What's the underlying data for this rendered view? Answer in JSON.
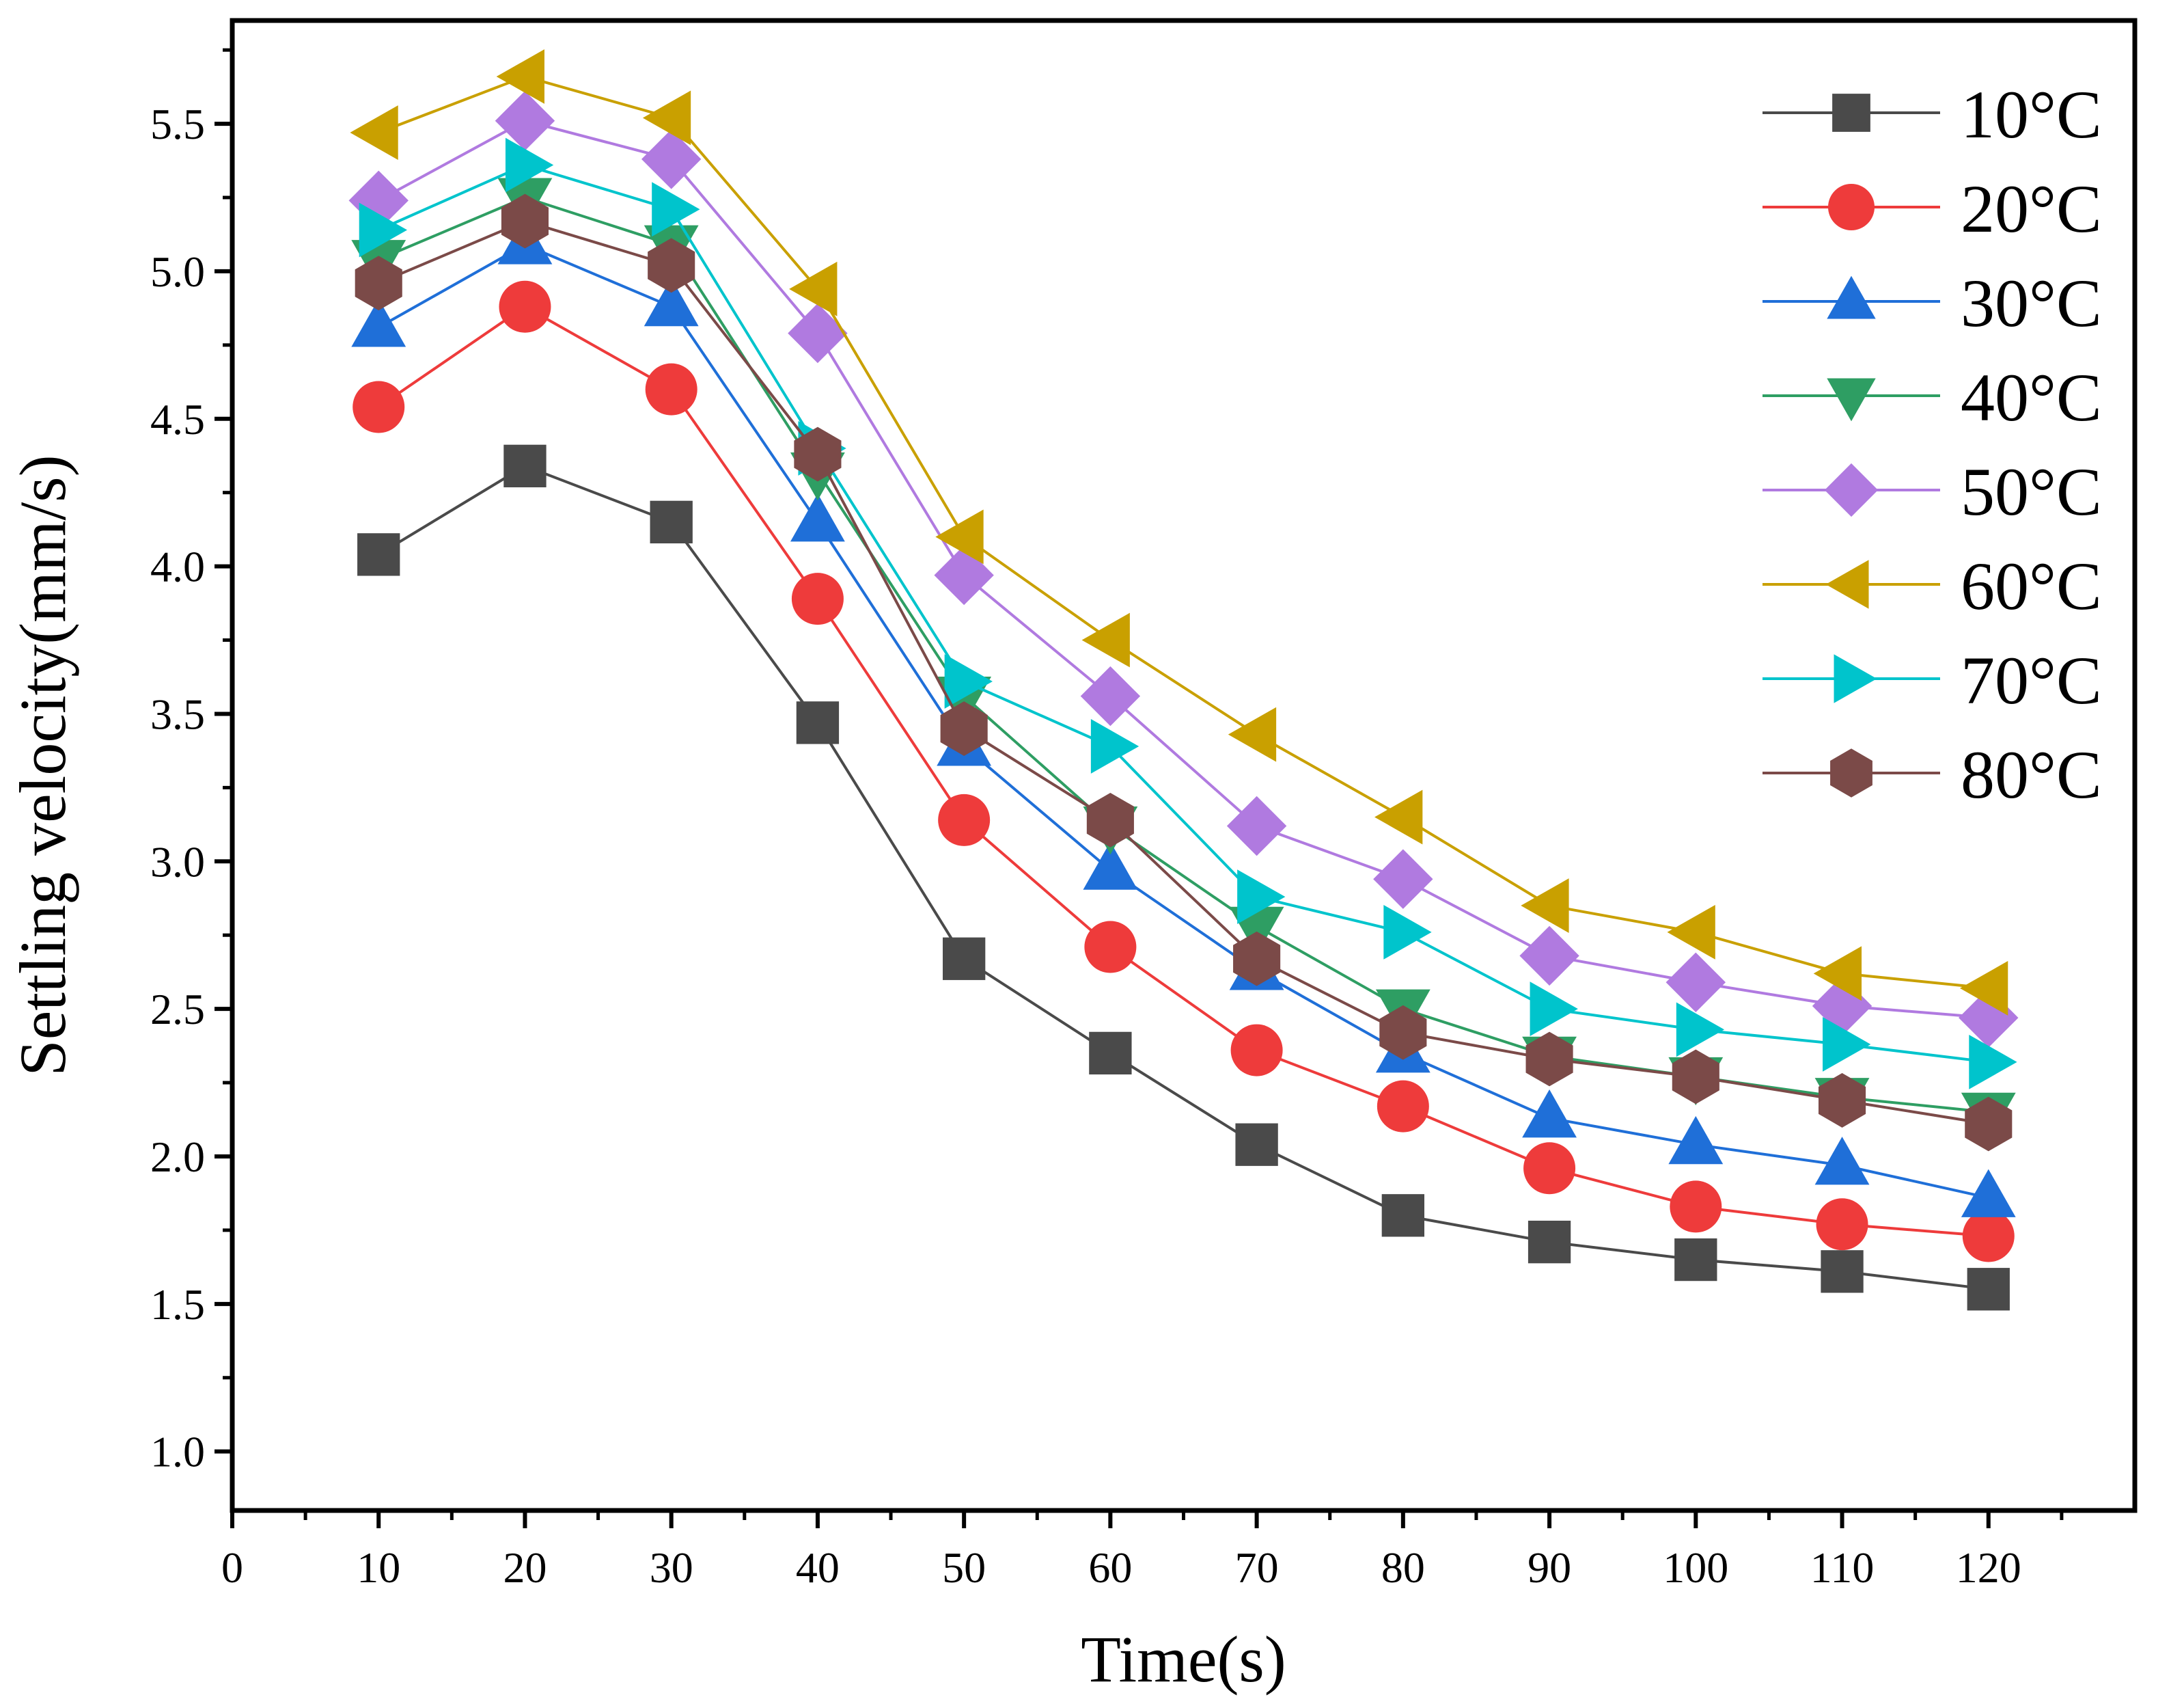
{
  "chart_data": {
    "type": "line",
    "title": "",
    "xlabel": "Time(s)",
    "ylabel": "Settling velocity(mm/s)",
    "xlim": [
      0,
      130
    ],
    "ylim": [
      0.8,
      5.85
    ],
    "x_ticks": [
      0,
      10,
      20,
      30,
      40,
      50,
      60,
      70,
      80,
      90,
      100,
      110,
      120
    ],
    "y_ticks": [
      1.0,
      1.5,
      2.0,
      2.5,
      3.0,
      3.5,
      4.0,
      4.5,
      5.0,
      5.5
    ],
    "grid": false,
    "legend_position": "top-right",
    "x": [
      10,
      20,
      30,
      40,
      50,
      60,
      70,
      80,
      90,
      100,
      110,
      120
    ],
    "series": [
      {
        "name": "10°C",
        "color": "#4a4a4a",
        "marker": "square",
        "values": [
          4.04,
          4.34,
          4.15,
          3.47,
          2.67,
          2.35,
          2.04,
          1.8,
          1.71,
          1.65,
          1.61,
          1.55
        ]
      },
      {
        "name": "20°C",
        "color": "#ee3b3b",
        "marker": "circle",
        "values": [
          4.54,
          4.88,
          4.6,
          3.89,
          3.14,
          2.71,
          2.36,
          2.17,
          1.96,
          1.83,
          1.77,
          1.73
        ]
      },
      {
        "name": "30°C",
        "color": "#1f6fd8",
        "marker": "triangle-up",
        "values": [
          4.81,
          5.09,
          4.88,
          4.15,
          3.39,
          2.97,
          2.63,
          2.35,
          2.13,
          2.04,
          1.97,
          1.86
        ]
      },
      {
        "name": "40°C",
        "color": "#2e9e63",
        "marker": "triangle-down",
        "values": [
          5.04,
          5.25,
          5.09,
          4.32,
          3.56,
          3.12,
          2.78,
          2.5,
          2.34,
          2.27,
          2.2,
          2.15
        ]
      },
      {
        "name": "50°C",
        "color": "#b07ae0",
        "marker": "diamond",
        "values": [
          5.24,
          5.51,
          5.38,
          4.79,
          3.97,
          3.56,
          3.12,
          2.94,
          2.68,
          2.59,
          2.51,
          2.47
        ]
      },
      {
        "name": "60°C",
        "color": "#c9a000",
        "marker": "triangle-left",
        "values": [
          5.47,
          5.66,
          5.52,
          4.94,
          4.1,
          3.75,
          3.43,
          3.15,
          2.85,
          2.76,
          2.62,
          2.57
        ]
      },
      {
        "name": "70°C",
        "color": "#00c4cc",
        "marker": "triangle-right",
        "values": [
          5.14,
          5.36,
          5.21,
          4.4,
          3.61,
          3.39,
          2.88,
          2.76,
          2.5,
          2.43,
          2.38,
          2.32
        ]
      },
      {
        "name": "80°C",
        "color": "#7b4a48",
        "marker": "hexagon",
        "values": [
          4.96,
          5.17,
          5.02,
          4.38,
          3.45,
          3.14,
          2.67,
          2.42,
          2.33,
          2.27,
          2.19,
          2.11
        ]
      }
    ]
  }
}
